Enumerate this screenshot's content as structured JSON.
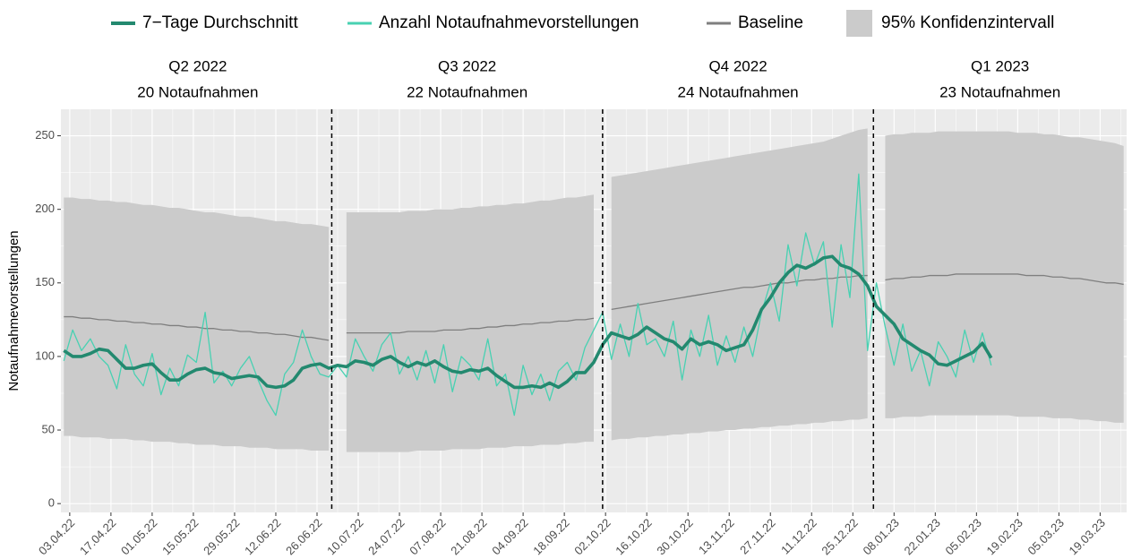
{
  "chart_data": {
    "type": "line",
    "y_label": "Notaufnahmevorstellungen",
    "xlim": [
      "2022-03-31",
      "2023-03-28"
    ],
    "ylim": [
      -6,
      268
    ],
    "yticks": [
      0,
      50,
      100,
      150,
      200,
      250
    ],
    "grid": true,
    "xticks": [
      {
        "value": "2022-04-03",
        "label": "03.04.22"
      },
      {
        "value": "2022-04-17",
        "label": "17.04.22"
      },
      {
        "value": "2022-05-01",
        "label": "01.05.22"
      },
      {
        "value": "2022-05-15",
        "label": "15.05.22"
      },
      {
        "value": "2022-05-29",
        "label": "29.05.22"
      },
      {
        "value": "2022-06-12",
        "label": "12.06.22"
      },
      {
        "value": "2022-06-26",
        "label": "26.06.22"
      },
      {
        "value": "2022-07-10",
        "label": "10.07.22"
      },
      {
        "value": "2022-07-24",
        "label": "24.07.22"
      },
      {
        "value": "2022-08-07",
        "label": "07.08.22"
      },
      {
        "value": "2022-08-21",
        "label": "21.08.22"
      },
      {
        "value": "2022-09-04",
        "label": "04.09.22"
      },
      {
        "value": "2022-09-18",
        "label": "18.09.22"
      },
      {
        "value": "2022-10-02",
        "label": "02.10.22"
      },
      {
        "value": "2022-10-16",
        "label": "16.10.22"
      },
      {
        "value": "2022-10-30",
        "label": "30.10.22"
      },
      {
        "value": "2022-11-13",
        "label": "13.11.22"
      },
      {
        "value": "2022-11-27",
        "label": "27.11.22"
      },
      {
        "value": "2022-12-11",
        "label": "11.12.22"
      },
      {
        "value": "2022-12-25",
        "label": "25.12.22"
      },
      {
        "value": "2023-01-08",
        "label": "08.01.23"
      },
      {
        "value": "2023-01-22",
        "label": "22.01.23"
      },
      {
        "value": "2023-02-05",
        "label": "05.02.23"
      },
      {
        "value": "2023-02-19",
        "label": "19.02.23"
      },
      {
        "value": "2023-03-05",
        "label": "05.03.23"
      },
      {
        "value": "2023-03-19",
        "label": "19.03.23"
      }
    ],
    "quarters": [
      {
        "label": "Q2 2022",
        "count": "20 Notaufnahmen",
        "start": "2022-04-01",
        "end": "2022-07-01"
      },
      {
        "label": "Q3 2022",
        "count": "22 Notaufnahmen",
        "start": "2022-07-01",
        "end": "2022-10-01"
      },
      {
        "label": "Q4 2022",
        "count": "24 Notaufnahmen",
        "start": "2022-10-01",
        "end": "2023-01-01"
      },
      {
        "label": "Q1 2023",
        "count": "23 Notaufnahmen",
        "start": "2023-01-01",
        "end": "2023-04-01"
      }
    ],
    "x": [
      "2022-04-01",
      "2022-04-04",
      "2022-04-07",
      "2022-04-10",
      "2022-04-13",
      "2022-04-16",
      "2022-04-19",
      "2022-04-22",
      "2022-04-25",
      "2022-04-28",
      "2022-05-01",
      "2022-05-04",
      "2022-05-07",
      "2022-05-10",
      "2022-05-13",
      "2022-05-16",
      "2022-05-19",
      "2022-05-22",
      "2022-05-25",
      "2022-05-28",
      "2022-05-31",
      "2022-06-03",
      "2022-06-06",
      "2022-06-09",
      "2022-06-12",
      "2022-06-15",
      "2022-06-18",
      "2022-06-21",
      "2022-06-24",
      "2022-06-27",
      "2022-06-30",
      "2022-07-03",
      "2022-07-06",
      "2022-07-09",
      "2022-07-12",
      "2022-07-15",
      "2022-07-18",
      "2022-07-21",
      "2022-07-24",
      "2022-07-27",
      "2022-07-30",
      "2022-08-02",
      "2022-08-05",
      "2022-08-08",
      "2022-08-11",
      "2022-08-14",
      "2022-08-17",
      "2022-08-20",
      "2022-08-23",
      "2022-08-26",
      "2022-08-29",
      "2022-09-01",
      "2022-09-04",
      "2022-09-07",
      "2022-09-10",
      "2022-09-13",
      "2022-09-16",
      "2022-09-19",
      "2022-09-22",
      "2022-09-25",
      "2022-09-28",
      "2022-10-01",
      "2022-10-04",
      "2022-10-07",
      "2022-10-10",
      "2022-10-13",
      "2022-10-16",
      "2022-10-19",
      "2022-10-22",
      "2022-10-25",
      "2022-10-28",
      "2022-10-31",
      "2022-11-03",
      "2022-11-06",
      "2022-11-09",
      "2022-11-12",
      "2022-11-15",
      "2022-11-18",
      "2022-11-21",
      "2022-11-24",
      "2022-11-27",
      "2022-11-30",
      "2022-12-03",
      "2022-12-06",
      "2022-12-09",
      "2022-12-12",
      "2022-12-15",
      "2022-12-18",
      "2022-12-21",
      "2022-12-24",
      "2022-12-27",
      "2022-12-30",
      "2023-01-02",
      "2023-01-05",
      "2023-01-08",
      "2023-01-11",
      "2023-01-14",
      "2023-01-17",
      "2023-01-20",
      "2023-01-23",
      "2023-01-26",
      "2023-01-29",
      "2023-02-01",
      "2023-02-04",
      "2023-02-07",
      "2023-02-10",
      "2023-02-13",
      "2023-02-16",
      "2023-02-19",
      "2023-02-22",
      "2023-02-25",
      "2023-02-28",
      "2023-03-03",
      "2023-03-06",
      "2023-03-09",
      "2023-03-12",
      "2023-03-15",
      "2023-03-18",
      "2023-03-21",
      "2023-03-24",
      "2023-03-27"
    ],
    "ci": {
      "name": "95% Konfidenzintervall",
      "color": "#cbcbcb",
      "lower": [
        46,
        46,
        45,
        45,
        45,
        44,
        44,
        44,
        43,
        43,
        42,
        42,
        42,
        41,
        41,
        40,
        40,
        40,
        39,
        39,
        39,
        38,
        38,
        38,
        37,
        37,
        37,
        37,
        36,
        36,
        36,
        null,
        35,
        35,
        35,
        35,
        35,
        35,
        35,
        35,
        36,
        36,
        36,
        36,
        37,
        37,
        37,
        37,
        38,
        38,
        38,
        39,
        39,
        39,
        40,
        40,
        40,
        41,
        41,
        42,
        42,
        null,
        43,
        44,
        44,
        45,
        45,
        46,
        46,
        47,
        47,
        48,
        48,
        49,
        49,
        50,
        50,
        51,
        51,
        52,
        52,
        53,
        53,
        54,
        54,
        55,
        55,
        56,
        56,
        57,
        57,
        58,
        null,
        58,
        58,
        59,
        59,
        59,
        60,
        60,
        60,
        60,
        60,
        60,
        60,
        60,
        60,
        60,
        59,
        59,
        59,
        59,
        58,
        58,
        58,
        57,
        57,
        56,
        56,
        55,
        55
      ],
      "upper": [
        208,
        208,
        207,
        207,
        206,
        206,
        205,
        205,
        204,
        203,
        203,
        202,
        201,
        201,
        200,
        199,
        198,
        198,
        197,
        196,
        195,
        195,
        194,
        193,
        192,
        192,
        191,
        190,
        190,
        189,
        188,
        null,
        198,
        198,
        198,
        198,
        198,
        198,
        198,
        199,
        199,
        199,
        200,
        200,
        200,
        201,
        201,
        202,
        202,
        203,
        203,
        204,
        204,
        205,
        206,
        206,
        207,
        208,
        208,
        209,
        210,
        null,
        222,
        223,
        224,
        225,
        226,
        227,
        228,
        229,
        230,
        231,
        232,
        233,
        234,
        235,
        236,
        237,
        238,
        239,
        240,
        241,
        242,
        243,
        244,
        245,
        246,
        248,
        250,
        252,
        254,
        255,
        null,
        250,
        251,
        251,
        252,
        252,
        252,
        253,
        253,
        253,
        253,
        253,
        253,
        253,
        253,
        253,
        252,
        252,
        252,
        251,
        251,
        250,
        249,
        249,
        248,
        247,
        246,
        245,
        243
      ]
    },
    "series": [
      {
        "name": "7−Tage Durchschnitt",
        "color": "#23896f",
        "values": [
          104,
          100,
          100,
          102,
          105,
          104,
          98,
          92,
          92,
          94,
          95,
          89,
          84,
          84,
          88,
          91,
          92,
          89,
          88,
          85,
          86,
          87,
          86,
          80,
          79,
          80,
          84,
          92,
          94,
          95,
          92,
          94,
          93,
          97,
          96,
          94,
          98,
          100,
          96,
          93,
          96,
          94,
          97,
          93,
          90,
          89,
          91,
          90,
          92,
          87,
          83,
          79,
          79,
          80,
          79,
          82,
          79,
          83,
          89,
          89,
          96,
          108,
          116,
          114,
          112,
          115,
          120,
          116,
          112,
          110,
          105,
          112,
          108,
          110,
          108,
          104,
          106,
          108,
          118,
          132,
          140,
          150,
          157,
          162,
          160,
          163,
          167,
          168,
          162,
          160,
          156,
          148,
          134,
          128,
          122,
          112,
          108,
          104,
          101,
          95,
          94,
          97,
          100,
          103,
          109,
          99,
          null,
          null,
          null,
          null,
          null,
          null,
          null,
          null,
          null,
          null,
          null,
          null,
          null,
          null,
          null
        ]
      },
      {
        "name": "Anzahl Notaufnahmevorstellungen",
        "color": "#48d1b2",
        "values": [
          97,
          118,
          104,
          112,
          100,
          94,
          78,
          108,
          88,
          80,
          102,
          74,
          92,
          80,
          101,
          96,
          130,
          82,
          90,
          80,
          92,
          100,
          84,
          70,
          60,
          88,
          96,
          118,
          100,
          88,
          86,
          94,
          86,
          112,
          100,
          90,
          108,
          116,
          88,
          100,
          84,
          104,
          82,
          108,
          76,
          100,
          94,
          84,
          112,
          80,
          88,
          60,
          94,
          74,
          88,
          70,
          90,
          96,
          84,
          106,
          118,
          130,
          98,
          122,
          100,
          136,
          108,
          112,
          100,
          124,
          84,
          118,
          100,
          128,
          94,
          114,
          96,
          120,
          100,
          130,
          150,
          124,
          176,
          148,
          184,
          162,
          178,
          120,
          176,
          140,
          224,
          104,
          150,
          120,
          94,
          122,
          90,
          104,
          80,
          110,
          100,
          86,
          118,
          96,
          116,
          94,
          null,
          null,
          null,
          null,
          null,
          null,
          null,
          null,
          null,
          null,
          null,
          null,
          null,
          null,
          null
        ]
      },
      {
        "name": "Baseline",
        "color": "#7f7f7f",
        "values": [
          127,
          127,
          126,
          126,
          125,
          125,
          124,
          124,
          123,
          123,
          122,
          122,
          121,
          121,
          120,
          120,
          119,
          119,
          118,
          118,
          117,
          117,
          116,
          116,
          115,
          115,
          114,
          113,
          113,
          112,
          111,
          null,
          116,
          116,
          116,
          116,
          116,
          116,
          116,
          117,
          117,
          117,
          117,
          118,
          118,
          118,
          119,
          119,
          120,
          120,
          121,
          121,
          122,
          122,
          123,
          123,
          124,
          124,
          125,
          125,
          126,
          null,
          132,
          133,
          134,
          135,
          136,
          137,
          138,
          139,
          140,
          141,
          142,
          143,
          144,
          145,
          146,
          147,
          147,
          148,
          149,
          150,
          150,
          151,
          152,
          152,
          153,
          153,
          154,
          154,
          155,
          155,
          null,
          152,
          153,
          153,
          154,
          154,
          155,
          155,
          155,
          156,
          156,
          156,
          156,
          156,
          156,
          156,
          156,
          155,
          155,
          155,
          154,
          154,
          153,
          153,
          152,
          151,
          150,
          150,
          149
        ]
      }
    ]
  }
}
